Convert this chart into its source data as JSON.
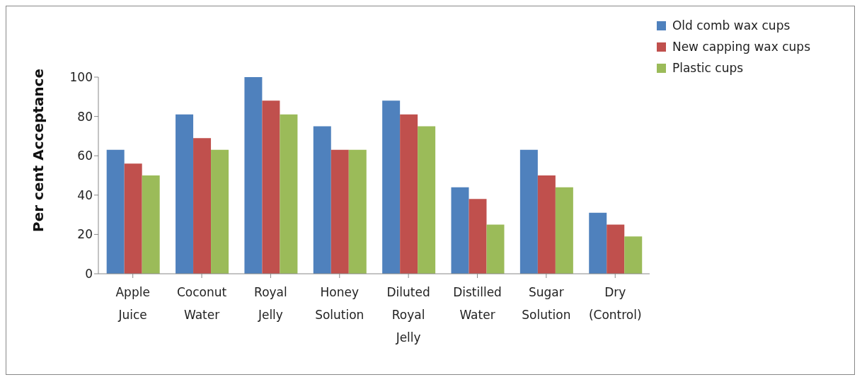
{
  "chart_data": {
    "type": "bar",
    "ylabel": "Per cent Acceptance",
    "categories": [
      "Apple Juice",
      "Coconut Water",
      "Royal Jelly",
      "Honey Solution",
      "Diluted Royal Jelly",
      "Distilled Water",
      "Sugar Solution",
      "Dry (Control)"
    ],
    "series": [
      {
        "name": "Old comb wax cups",
        "color": "#4f81bd",
        "values": [
          63,
          81,
          100,
          75,
          88,
          44,
          63,
          31
        ]
      },
      {
        "name": "New capping wax cups",
        "color": "#c0504d",
        "values": [
          56,
          69,
          88,
          63,
          81,
          38,
          50,
          25
        ]
      },
      {
        "name": "Plastic cups",
        "color": "#9bbb59",
        "values": [
          50,
          63,
          81,
          63,
          75,
          25,
          44,
          19
        ]
      }
    ],
    "ylim": [
      0,
      100
    ],
    "yticks": [
      0,
      20,
      40,
      60,
      80,
      100
    ],
    "grid": false,
    "legend": "top right"
  }
}
